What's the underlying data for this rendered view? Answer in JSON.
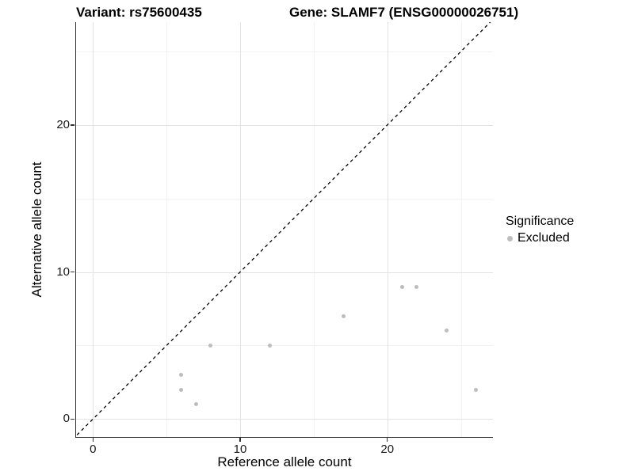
{
  "titles": {
    "left": "Variant: rs75600435",
    "right": "Gene: SLAMF7 (ENSG00000026751)"
  },
  "axes": {
    "x": {
      "label": "Reference allele count",
      "tick_labels": [
        "0",
        "10",
        "20"
      ]
    },
    "y": {
      "label": "Alternative allele count",
      "tick_labels": [
        "0",
        "10",
        "20"
      ]
    }
  },
  "legend": {
    "title": "Significance",
    "items": [
      {
        "label": "Excluded",
        "color": "#bdbdbd"
      }
    ]
  },
  "colors": {
    "point": "#bdbdbd",
    "grid_major": "#e3e3e3",
    "grid_minor": "#f2f2f2",
    "axis_line": "#333333",
    "reference_line": "#000000",
    "background": "#ffffff"
  },
  "chart_data": {
    "type": "scatter",
    "title": "Variant: rs75600435   |   Gene: SLAMF7 (ENSG00000026751)",
    "xlabel": "Reference allele count",
    "ylabel": "Alternative allele count",
    "xlim": [
      -1.3,
      27.3
    ],
    "ylim": [
      -1.3,
      27.0
    ],
    "x_major_ticks": [
      0,
      10,
      20
    ],
    "x_minor_ticks": [
      5,
      15,
      25
    ],
    "y_major_ticks": [
      0,
      10,
      20
    ],
    "y_minor_ticks": [
      5,
      15,
      25
    ],
    "grid": "major and minor, light gray on white",
    "legend_position": "right-center",
    "series": [
      {
        "name": "Excluded",
        "color": "#bdbdbd",
        "points": [
          [
            6,
            2
          ],
          [
            6,
            3
          ],
          [
            7,
            1
          ],
          [
            8,
            5
          ],
          [
            12,
            5
          ],
          [
            17,
            7
          ],
          [
            21,
            9
          ],
          [
            22,
            9
          ],
          [
            24,
            6
          ],
          [
            26,
            2
          ]
        ]
      }
    ],
    "reference_line": {
      "kind": "identity y=x",
      "style": "dashed",
      "color": "#000000"
    }
  }
}
